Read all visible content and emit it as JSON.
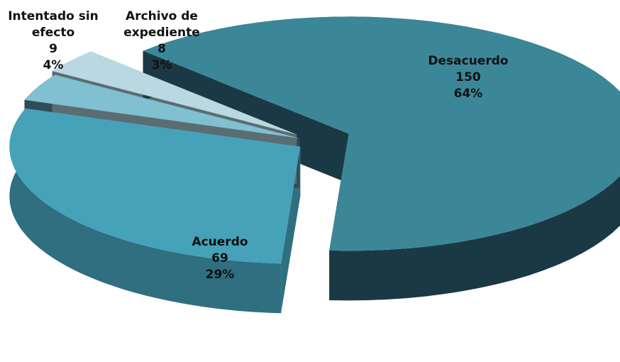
{
  "chart_data": {
    "type": "pie",
    "categories": [
      "Desacuerdo",
      "Acuerdo",
      "Intentado sin efecto",
      "Archivo de expediente"
    ],
    "values": [
      150,
      69,
      9,
      8
    ],
    "percent_labels": [
      "64%",
      "29%",
      "4%",
      "3%"
    ],
    "colors": [
      "#3b8797",
      "#46a2b9",
      "#80c0d0",
      "#b9d8e1"
    ],
    "side_colors": [
      "#1b3944",
      "#2f6f80",
      "#2e4d58",
      "#5a6d73"
    ]
  }
}
